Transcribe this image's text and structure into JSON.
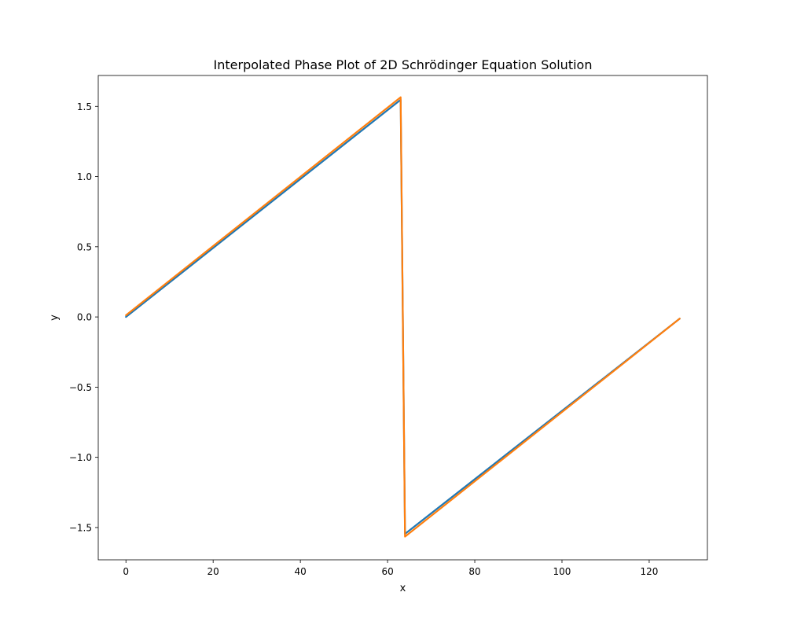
{
  "chart_data": {
    "type": "line",
    "title": "Interpolated Phase Plot of 2D Schrödinger Equation Solution",
    "xlabel": "x",
    "ylabel": "y",
    "xlim": [
      -6.35,
      133.35
    ],
    "ylim": [
      -1.73,
      1.72
    ],
    "xticks": [
      0,
      20,
      40,
      60,
      80,
      100,
      120
    ],
    "xtick_labels": [
      "0",
      "20",
      "40",
      "60",
      "80",
      "100",
      "120"
    ],
    "yticks": [
      -1.5,
      -1.0,
      -0.5,
      0.0,
      0.5,
      1.0,
      1.5
    ],
    "ytick_labels": [
      "−1.5",
      "−1.0",
      "−0.5",
      "0.0",
      "0.5",
      "1.0",
      "1.5"
    ],
    "grid": false,
    "legend": "none",
    "series": [
      {
        "color": "#1f77b4",
        "x": [
          0,
          63,
          64,
          127
        ],
        "y": [
          0.0,
          1.547,
          -1.545,
          -0.012
        ]
      },
      {
        "color": "#ff7f0e",
        "x": [
          0,
          63,
          64,
          127
        ],
        "y": [
          0.012,
          1.565,
          -1.565,
          -0.012
        ]
      }
    ]
  }
}
